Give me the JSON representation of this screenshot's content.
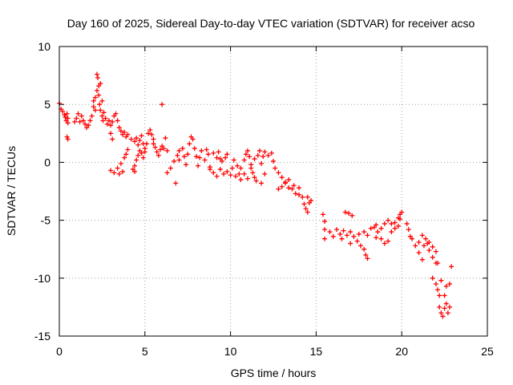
{
  "chart_data": {
    "type": "scatter",
    "title": "Day 160 of 2025, Sidereal Day-to-day VTEC variation (SDTVAR) for receiver acso",
    "xlabel": "GPS time / hours",
    "ylabel": "SDTVAR / TECUs",
    "xlim": [
      0,
      25
    ],
    "ylim": [
      -15,
      10
    ],
    "xticks": [
      0,
      5,
      10,
      15,
      20,
      25
    ],
    "yticks": [
      -15,
      -10,
      -5,
      0,
      5,
      10
    ],
    "grid": true,
    "marker": "+",
    "series": [
      {
        "name": "SDTVAR",
        "color": "#ff0000",
        "points": [
          [
            0.0,
            5.1
          ],
          [
            0.1,
            4.6
          ],
          [
            0.2,
            4.4
          ],
          [
            0.3,
            4.1
          ],
          [
            0.35,
            3.9
          ],
          [
            0.4,
            3.6
          ],
          [
            0.45,
            4.2
          ],
          [
            0.5,
            3.8
          ],
          [
            0.5,
            3.4
          ],
          [
            0.45,
            2.2
          ],
          [
            0.5,
            2.0
          ],
          [
            0.9,
            3.5
          ],
          [
            1.0,
            3.8
          ],
          [
            1.1,
            4.2
          ],
          [
            1.2,
            3.5
          ],
          [
            1.3,
            4.0
          ],
          [
            1.4,
            3.6
          ],
          [
            1.5,
            3.3
          ],
          [
            1.6,
            3.0
          ],
          [
            1.7,
            3.2
          ],
          [
            1.8,
            3.6
          ],
          [
            1.9,
            4.0
          ],
          [
            2.0,
            4.8
          ],
          [
            2.0,
            5.3
          ],
          [
            2.1,
            5.6
          ],
          [
            2.1,
            4.5
          ],
          [
            2.2,
            6.2
          ],
          [
            2.2,
            7.6
          ],
          [
            2.25,
            7.3
          ],
          [
            2.3,
            6.6
          ],
          [
            2.3,
            5.8
          ],
          [
            2.35,
            5.0
          ],
          [
            2.4,
            4.5
          ],
          [
            2.4,
            6.8
          ],
          [
            2.5,
            5.3
          ],
          [
            2.5,
            4.0
          ],
          [
            2.55,
            3.6
          ],
          [
            2.6,
            4.3
          ],
          [
            2.7,
            3.8
          ],
          [
            2.8,
            3.3
          ],
          [
            2.9,
            3.6
          ],
          [
            3.0,
            3.2
          ],
          [
            3.1,
            3.5
          ],
          [
            3.2,
            4.0
          ],
          [
            3.3,
            4.2
          ],
          [
            3.4,
            3.6
          ],
          [
            3.5,
            3.0
          ],
          [
            3.6,
            2.7
          ],
          [
            3.7,
            2.4
          ],
          [
            3.8,
            2.6
          ],
          [
            3.9,
            2.2
          ],
          [
            4.0,
            2.4
          ],
          [
            3.0,
            2.5
          ],
          [
            3.1,
            2.0
          ],
          [
            3.0,
            -0.7
          ],
          [
            3.2,
            -0.9
          ],
          [
            3.4,
            -0.5
          ],
          [
            3.6,
            -0.1
          ],
          [
            3.8,
            0.4
          ],
          [
            3.9,
            0.7
          ],
          [
            4.0,
            1.1
          ],
          [
            3.7,
            -0.8
          ],
          [
            3.5,
            -1.0
          ],
          [
            4.2,
            2.0
          ],
          [
            4.4,
            1.8
          ],
          [
            4.5,
            2.1
          ],
          [
            4.6,
            1.5
          ],
          [
            4.7,
            1.9
          ],
          [
            4.8,
            2.3
          ],
          [
            4.9,
            1.6
          ],
          [
            5.0,
            1.2
          ],
          [
            5.1,
            1.6
          ],
          [
            5.2,
            2.5
          ],
          [
            5.3,
            2.8
          ],
          [
            5.4,
            2.4
          ],
          [
            5.5,
            2.0
          ],
          [
            4.3,
            -0.6
          ],
          [
            4.4,
            -0.3
          ],
          [
            4.5,
            0.2
          ],
          [
            4.6,
            0.6
          ],
          [
            4.7,
            1.0
          ],
          [
            4.8,
            0.8
          ],
          [
            4.9,
            0.4
          ],
          [
            5.0,
            0.9
          ],
          [
            4.4,
            -0.8
          ],
          [
            5.5,
            1.6
          ],
          [
            5.6,
            1.3
          ],
          [
            5.7,
            0.9
          ],
          [
            5.8,
            0.6
          ],
          [
            5.9,
            1.1
          ],
          [
            6.0,
            1.4
          ],
          [
            6.0,
            5.0
          ],
          [
            6.2,
            2.1
          ],
          [
            6.1,
            1.2
          ],
          [
            6.3,
            1.0
          ],
          [
            6.3,
            -0.9
          ],
          [
            6.5,
            -0.5
          ],
          [
            6.7,
            0.1
          ],
          [
            6.9,
            0.6
          ],
          [
            7.0,
            1.0
          ],
          [
            6.8,
            -1.8
          ],
          [
            7.0,
            0.2
          ],
          [
            7.2,
            1.2
          ],
          [
            7.3,
            0.5
          ],
          [
            7.4,
            -0.2
          ],
          [
            7.5,
            0.7
          ],
          [
            7.6,
            1.6
          ],
          [
            7.7,
            2.2
          ],
          [
            7.8,
            2.0
          ],
          [
            7.9,
            1.2
          ],
          [
            8.0,
            0.5
          ],
          [
            8.1,
            -0.3
          ],
          [
            8.2,
            0.4
          ],
          [
            8.3,
            1.0
          ],
          [
            8.5,
            0.2
          ],
          [
            8.6,
            1.1
          ],
          [
            8.7,
            0.7
          ],
          [
            8.8,
            -0.4
          ],
          [
            9.0,
            0.8
          ],
          [
            9.2,
            0.4
          ],
          [
            9.3,
            0.9
          ],
          [
            9.4,
            0.3
          ],
          [
            9.5,
            0.1
          ],
          [
            9.7,
            0.4
          ],
          [
            9.8,
            0.7
          ],
          [
            8.8,
            -0.6
          ],
          [
            9.0,
            -0.9
          ],
          [
            9.2,
            -1.2
          ],
          [
            9.4,
            -0.6
          ],
          [
            9.6,
            -1.0
          ],
          [
            9.8,
            -0.8
          ],
          [
            10.0,
            -1.1
          ],
          [
            10.1,
            -0.5
          ],
          [
            10.2,
            0.2
          ],
          [
            10.4,
            -0.3
          ],
          [
            10.3,
            -1.2
          ],
          [
            10.5,
            -1.0
          ],
          [
            10.6,
            -0.5
          ],
          [
            10.8,
            0.2
          ],
          [
            10.9,
            0.7
          ],
          [
            11.0,
            1.0
          ],
          [
            11.1,
            0.5
          ],
          [
            11.2,
            -0.2
          ],
          [
            11.3,
            -0.9
          ],
          [
            11.4,
            -1.3
          ],
          [
            11.5,
            -1.6
          ],
          [
            10.6,
            -1.5
          ],
          [
            10.8,
            -1.0
          ],
          [
            11.0,
            -1.4
          ],
          [
            11.2,
            -0.5
          ],
          [
            11.4,
            0.3
          ],
          [
            11.6,
            0.6
          ],
          [
            11.8,
            -0.1
          ],
          [
            11.9,
            0.5
          ],
          [
            12.0,
            0.9
          ],
          [
            11.7,
            1.0
          ],
          [
            12.0,
            -1.0
          ],
          [
            11.8,
            -1.8
          ],
          [
            12.2,
            0.6
          ],
          [
            12.4,
            0.8
          ],
          [
            12.5,
            0.1
          ],
          [
            12.6,
            -0.5
          ],
          [
            12.8,
            -0.9
          ],
          [
            13.0,
            -1.3
          ],
          [
            13.2,
            -1.8
          ],
          [
            13.4,
            -1.5
          ],
          [
            13.6,
            -2.3
          ],
          [
            13.8,
            -2.7
          ],
          [
            14.0,
            -2.8
          ],
          [
            12.8,
            -2.3
          ],
          [
            13.0,
            -2.1
          ],
          [
            13.2,
            -1.7
          ],
          [
            13.4,
            -2.2
          ],
          [
            13.7,
            -2.0
          ],
          [
            14.0,
            -2.2
          ],
          [
            14.2,
            -3.0
          ],
          [
            14.3,
            -3.6
          ],
          [
            14.4,
            -4.0
          ],
          [
            14.5,
            -4.3
          ],
          [
            14.5,
            -3.0
          ],
          [
            14.6,
            -3.5
          ],
          [
            14.7,
            -3.3
          ],
          [
            15.4,
            -4.5
          ],
          [
            15.5,
            -5.1
          ],
          [
            15.5,
            -5.8
          ],
          [
            15.5,
            -6.6
          ],
          [
            15.8,
            -6.0
          ],
          [
            16.0,
            -6.4
          ],
          [
            16.2,
            -5.8
          ],
          [
            16.4,
            -6.2
          ],
          [
            16.5,
            -6.6
          ],
          [
            16.6,
            -5.9
          ],
          [
            16.8,
            -6.3
          ],
          [
            17.0,
            -6.0
          ],
          [
            17.0,
            -7.0
          ],
          [
            16.7,
            -4.3
          ],
          [
            16.9,
            -4.4
          ],
          [
            17.1,
            -4.6
          ],
          [
            17.2,
            -6.4
          ],
          [
            17.4,
            -6.8
          ],
          [
            17.6,
            -7.2
          ],
          [
            17.8,
            -7.5
          ],
          [
            17.9,
            -8.0
          ],
          [
            18.0,
            -8.3
          ],
          [
            17.5,
            -6.2
          ],
          [
            17.8,
            -6.0
          ],
          [
            18.0,
            -6.3
          ],
          [
            18.2,
            -5.7
          ],
          [
            18.4,
            -5.6
          ],
          [
            18.5,
            -5.4
          ],
          [
            18.6,
            -6.0
          ],
          [
            18.8,
            -6.6
          ],
          [
            19.0,
            -7.0
          ],
          [
            19.2,
            -6.8
          ],
          [
            19.4,
            -6.0
          ],
          [
            19.6,
            -5.2
          ],
          [
            19.8,
            -4.8
          ],
          [
            19.9,
            -4.5
          ],
          [
            20.0,
            -4.3
          ],
          [
            18.5,
            -6.5
          ],
          [
            18.8,
            -5.7
          ],
          [
            19.0,
            -5.3
          ],
          [
            19.2,
            -5.0
          ],
          [
            19.4,
            -5.3
          ],
          [
            19.6,
            -5.7
          ],
          [
            19.8,
            -5.5
          ],
          [
            19.9,
            -4.9
          ],
          [
            20.3,
            -5.3
          ],
          [
            20.4,
            -5.8
          ],
          [
            20.5,
            -6.4
          ],
          [
            20.6,
            -6.6
          ],
          [
            20.8,
            -7.2
          ],
          [
            21.0,
            -7.8
          ],
          [
            21.2,
            -8.4
          ],
          [
            21.0,
            -6.9
          ],
          [
            21.3,
            -7.2
          ],
          [
            21.5,
            -7.0
          ],
          [
            21.6,
            -7.6
          ],
          [
            21.8,
            -8.2
          ],
          [
            22.0,
            -8.7
          ],
          [
            21.2,
            -6.3
          ],
          [
            21.4,
            -6.6
          ],
          [
            21.6,
            -6.9
          ],
          [
            21.8,
            -7.3
          ],
          [
            22.0,
            -7.7
          ],
          [
            21.8,
            -10.0
          ],
          [
            22.0,
            -10.5
          ],
          [
            22.1,
            -11.0
          ],
          [
            22.2,
            -11.5
          ],
          [
            22.2,
            -12.5
          ],
          [
            22.3,
            -13.0
          ],
          [
            22.4,
            -13.3
          ],
          [
            22.1,
            -8.7
          ],
          [
            22.3,
            -10.2
          ],
          [
            22.5,
            -12.6
          ],
          [
            22.5,
            -11.5
          ],
          [
            22.6,
            -10.7
          ],
          [
            22.6,
            -12.2
          ],
          [
            22.7,
            -13.0
          ],
          [
            22.8,
            -12.5
          ],
          [
            22.8,
            -10.5
          ],
          [
            22.9,
            -9.0
          ]
        ]
      }
    ]
  }
}
